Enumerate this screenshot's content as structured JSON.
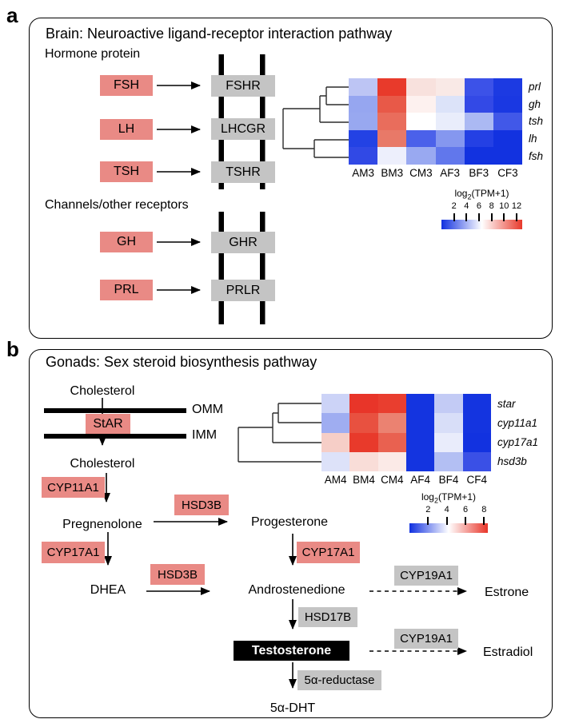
{
  "figure": {
    "panel_a_letter": "a",
    "panel_b_letter": "b"
  },
  "colors": {
    "ligand_box": "#e98a85",
    "receptor_box": "#c4c4c4",
    "testosterone_box": "#000000",
    "membrane": "#000000"
  },
  "panel_a": {
    "title": "Brain: Neuroactive ligand-receptor interaction pathway",
    "sections": {
      "hormone": "Hormone protein",
      "channels": "Channels/other receptors"
    },
    "hormone_pairs": [
      {
        "ligand": "FSH",
        "receptor": "FSHR"
      },
      {
        "ligand": "LH",
        "receptor": "LHCGR"
      },
      {
        "ligand": "TSH",
        "receptor": "TSHR"
      }
    ],
    "channel_pairs": [
      {
        "ligand": "GH",
        "receptor": "GHR"
      },
      {
        "ligand": "PRL",
        "receptor": "PRLR"
      }
    ]
  },
  "panel_b": {
    "title": "Gonads: Sex steroid biosynthesis pathway",
    "membranes": {
      "outer": "OMM",
      "inner": "IMM"
    },
    "metabolites": {
      "cholesterol_top": "Cholesterol",
      "cholesterol_inner": "Cholesterol",
      "pregnenolone": "Pregnenolone",
      "progesterone": "Progesterone",
      "dhea": "DHEA",
      "androstenedione": "Androstenedione",
      "estrone": "Estrone",
      "testosterone": "Testosterone",
      "estradiol": "Estradiol",
      "dht": "5α-DHT"
    },
    "enzymes": {
      "star": "StAR",
      "cyp11a1": "CYP11A1",
      "hsd3b_1": "HSD3B",
      "cyp17a1_left": "CYP17A1",
      "cyp17a1_right": "CYP17A1",
      "hsd3b_2": "HSD3B",
      "cyp19a1_top": "CYP19A1",
      "hsd17b": "HSD17B",
      "cyp19a1_bottom": "CYP19A1",
      "reductase": "5α-reductase"
    }
  },
  "chart_data": [
    {
      "type": "heatmap",
      "name": "brain-hormone-expression",
      "columns": [
        "AM3",
        "BM3",
        "CM3",
        "AF3",
        "BF3",
        "CF3"
      ],
      "rows": [
        "prl",
        "gh",
        "tsh",
        "lh",
        "fsh"
      ],
      "values": [
        [
          5.0,
          12.3,
          7.3,
          7.1,
          2.2,
          1.2
        ],
        [
          4.2,
          11.4,
          6.9,
          5.6,
          1.9,
          1.2
        ],
        [
          4.3,
          10.9,
          6.5,
          6.1,
          4.7,
          2.4
        ],
        [
          1.3,
          10.5,
          2.6,
          3.9,
          1.4,
          0.7
        ],
        [
          1.9,
          6.1,
          4.3,
          3.3,
          0.7,
          0.7
        ]
      ],
      "cell_colors": [
        [
          "#bdc5f4",
          "#e83a2b",
          "#f8e1dd",
          "#f9e9e6",
          "#3c52e8",
          "#1c3ae2"
        ],
        [
          "#96a6f0",
          "#e85948",
          "#fdf1ef",
          "#dce3f9",
          "#3349e6",
          "#1a38e2"
        ],
        [
          "#98a8f0",
          "#e96d5c",
          "#ffffff",
          "#e9edfb",
          "#abb9f3",
          "#4158e8"
        ],
        [
          "#2342e4",
          "#e87968",
          "#4b61ea",
          "#8597ef",
          "#2440e4",
          "#1232e0"
        ],
        [
          "#3149e5",
          "#edeffc",
          "#99a9f1",
          "#6177ec",
          "#1232e0",
          "#1232e0"
        ]
      ],
      "row_dendrogram": "(((prl,gh),tsh),(lh,fsh))",
      "colorbar": {
        "title": "log2(TPM+1)",
        "ticks": [
          2,
          4,
          6,
          8,
          10,
          12
        ],
        "min": 0,
        "max": 12.9,
        "colors": [
          "#1030e0",
          "#ffffff",
          "#e8392b"
        ]
      }
    },
    {
      "type": "heatmap",
      "name": "gonad-steroidogenesis-expression",
      "columns": [
        "AM4",
        "BM4",
        "CM4",
        "AF4",
        "BF4",
        "CF4"
      ],
      "rows": [
        "star",
        "cyp11a1",
        "cyp17a1",
        "hsd3b"
      ],
      "values": [
        [
          3.4,
          8.2,
          8.1,
          0.3,
          3.3,
          0.3
        ],
        [
          2.9,
          7.6,
          6.8,
          0.3,
          3.7,
          0.3
        ],
        [
          4.9,
          8.1,
          7.4,
          0.3,
          4.0,
          0.2
        ],
        [
          3.8,
          4.8,
          4.5,
          0.3,
          3.1,
          1.0
        ]
      ],
      "cell_colors": [
        [
          "#ccd3f7",
          "#e83529",
          "#e93e2f",
          "#1434e0",
          "#c3cbf5",
          "#1434e0"
        ],
        [
          "#9fadf1",
          "#e85140",
          "#eb8271",
          "#1434e0",
          "#d8def8",
          "#1434e0"
        ],
        [
          "#f6cec7",
          "#e83a2b",
          "#e96150",
          "#1434e0",
          "#e9ecfb",
          "#1232e0"
        ],
        [
          "#dde2f9",
          "#f9ddd8",
          "#fbeae7",
          "#1434e0",
          "#b3bff3",
          "#3a50e6"
        ]
      ],
      "row_dendrogram": "(((star,cyp11a1),cyp17a1),hsd3b)",
      "colorbar": {
        "title": "log2(TPM+1)",
        "ticks": [
          2,
          4,
          6,
          8
        ],
        "min": 0,
        "max": 8.4,
        "colors": [
          "#1030e0",
          "#ffffff",
          "#e83529"
        ]
      }
    }
  ]
}
